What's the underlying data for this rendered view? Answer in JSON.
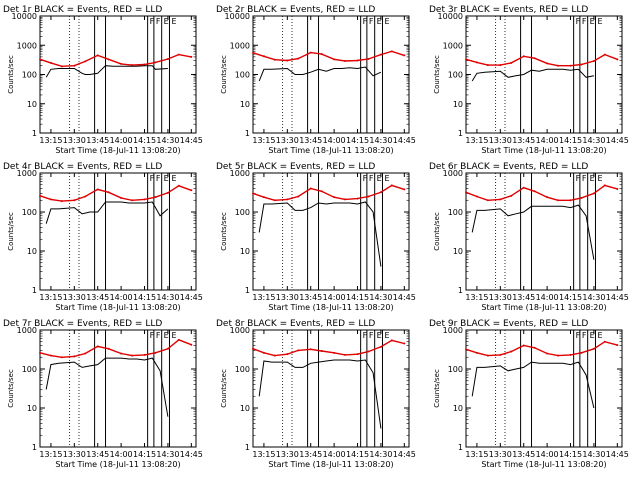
{
  "colors": {
    "events": "#000000",
    "lld": "#e00000",
    "background": "#ffffff",
    "axes": "#000000"
  },
  "labels": {
    "ylabel": "Counts/sec",
    "xlabel": "Start Time (18-Jul-11 13:08:20)"
  },
  "markers": [
    "F",
    "F",
    "E",
    "E"
  ],
  "chart_data": [
    {
      "type": "line",
      "title": "Det 1r  BLACK = Events, RED = LLD",
      "xlabel": "Start Time (18-Jul-11 13:08:20)",
      "ylabel": "Counts/sec",
      "y_scale": "log",
      "ylim": [
        1,
        10000
      ],
      "xlim": [
        "13:08",
        "14:48"
      ],
      "x_ticks": [
        "13:15",
        "13:30",
        "13:45",
        "14:00",
        "14:15",
        "14:30",
        "14:45"
      ],
      "y_ticks": [
        "1",
        "10",
        "100",
        "1000",
        "10000"
      ],
      "series": [
        {
          "name": "LLD",
          "color": "#e00000",
          "x": [
            "13:08",
            "13:15",
            "13:22",
            "13:30",
            "13:37",
            "13:45",
            "13:52",
            "14:00",
            "14:07",
            "14:15",
            "14:22",
            "14:30",
            "14:37",
            "14:45"
          ],
          "y": [
            330,
            250,
            190,
            200,
            280,
            450,
            330,
            230,
            210,
            220,
            260,
            340,
            480,
            400
          ]
        },
        {
          "name": "Events",
          "color": "#000000",
          "x": [
            "13:12",
            "13:15",
            "13:20",
            "13:30",
            "13:35",
            "13:37",
            "13:40",
            "13:45",
            "13:50",
            "13:55",
            "14:00",
            "14:05",
            "14:10",
            "14:15",
            "14:20",
            "14:22",
            "14:30"
          ],
          "y": [
            80,
            150,
            160,
            160,
            110,
            100,
            100,
            110,
            200,
            190,
            190,
            190,
            190,
            200,
            200,
            150,
            160
          ]
        }
      ]
    },
    {
      "type": "line",
      "title": "Det 2r  BLACK = Events, RED = LLD",
      "xlabel": "Start Time (18-Jul-11 13:08:20)",
      "ylabel": "Counts/sec",
      "y_scale": "log",
      "ylim": [
        1,
        10000
      ],
      "xlim": [
        "13:08",
        "14:48"
      ],
      "x_ticks": [
        "13:15",
        "13:30",
        "13:45",
        "14:00",
        "14:15",
        "14:30",
        "14:45"
      ],
      "y_ticks": [
        "1",
        "10",
        "100",
        "1000",
        "10000"
      ],
      "series": [
        {
          "name": "LLD",
          "color": "#e00000",
          "x": [
            "13:08",
            "13:15",
            "13:22",
            "13:30",
            "13:37",
            "13:45",
            "13:52",
            "14:00",
            "14:07",
            "14:15",
            "14:22",
            "14:30",
            "14:37",
            "14:45"
          ],
          "y": [
            550,
            420,
            320,
            300,
            350,
            560,
            500,
            330,
            290,
            300,
            340,
            480,
            620,
            450
          ]
        },
        {
          "name": "Events",
          "color": "#000000",
          "x": [
            "13:12",
            "13:15",
            "13:20",
            "13:30",
            "13:35",
            "13:40",
            "13:45",
            "13:50",
            "13:55",
            "14:00",
            "14:05",
            "14:10",
            "14:15",
            "14:20",
            "14:25",
            "14:30"
          ],
          "y": [
            60,
            150,
            150,
            160,
            100,
            100,
            120,
            150,
            130,
            160,
            160,
            170,
            160,
            180,
            90,
            120
          ]
        }
      ]
    },
    {
      "type": "line",
      "title": "Det 3r  BLACK = Events, RED = LLD",
      "xlabel": "Start Time (18-Jul-11 13:08:20)",
      "ylabel": "Counts/sec",
      "y_scale": "log",
      "ylim": [
        1,
        10000
      ],
      "xlim": [
        "13:08",
        "14:48"
      ],
      "x_ticks": [
        "13:15",
        "13:30",
        "13:45",
        "14:00",
        "14:15",
        "14:30",
        "14:45"
      ],
      "y_ticks": [
        "1",
        "10",
        "100",
        "1000",
        "10000"
      ],
      "series": [
        {
          "name": "LLD",
          "color": "#e00000",
          "x": [
            "13:08",
            "13:15",
            "13:22",
            "13:30",
            "13:37",
            "13:45",
            "13:52",
            "14:00",
            "14:07",
            "14:15",
            "14:22",
            "14:30",
            "14:37",
            "14:45"
          ],
          "y": [
            330,
            260,
            210,
            210,
            250,
            420,
            360,
            240,
            200,
            200,
            220,
            290,
            480,
            330
          ]
        },
        {
          "name": "Events",
          "color": "#000000",
          "x": [
            "13:12",
            "13:15",
            "13:20",
            "13:30",
            "13:35",
            "13:40",
            "13:45",
            "13:50",
            "13:55",
            "14:00",
            "14:05",
            "14:10",
            "14:15",
            "14:20",
            "14:25",
            "14:30"
          ],
          "y": [
            60,
            110,
            120,
            130,
            80,
            90,
            100,
            140,
            130,
            150,
            150,
            150,
            140,
            150,
            80,
            90
          ]
        }
      ]
    },
    {
      "type": "line",
      "title": "Det 4r  BLACK = Events, RED = LLD",
      "xlabel": "Start Time (18-Jul-11 13:08:20)",
      "ylabel": "Counts/sec",
      "y_scale": "log",
      "ylim": [
        1,
        1000
      ],
      "xlim": [
        "13:08",
        "14:48"
      ],
      "x_ticks": [
        "13:15",
        "13:30",
        "13:45",
        "14:00",
        "14:15",
        "14:30",
        "14:45"
      ],
      "y_ticks": [
        "1",
        "10",
        "100",
        "1000"
      ],
      "series": [
        {
          "name": "LLD",
          "color": "#e00000",
          "x": [
            "13:08",
            "13:15",
            "13:22",
            "13:30",
            "13:37",
            "13:45",
            "13:52",
            "14:00",
            "14:07",
            "14:15",
            "14:22",
            "14:30",
            "14:37",
            "14:45"
          ],
          "y": [
            260,
            210,
            190,
            200,
            250,
            380,
            320,
            230,
            200,
            210,
            240,
            310,
            470,
            360
          ]
        },
        {
          "name": "Events",
          "color": "#000000",
          "x": [
            "13:12",
            "13:15",
            "13:20",
            "13:30",
            "13:35",
            "13:40",
            "13:45",
            "13:50",
            "13:55",
            "14:00",
            "14:05",
            "14:10",
            "14:15",
            "14:20",
            "14:25",
            "14:30"
          ],
          "y": [
            50,
            120,
            120,
            130,
            90,
            100,
            100,
            180,
            180,
            180,
            170,
            170,
            170,
            180,
            80,
            120
          ]
        }
      ]
    },
    {
      "type": "line",
      "title": "Det 5r  BLACK = Events, RED = LLD",
      "xlabel": "Start Time (18-Jul-11 13:08:20)",
      "ylabel": "Counts/sec",
      "y_scale": "log",
      "ylim": [
        1,
        1000
      ],
      "xlim": [
        "13:08",
        "14:48"
      ],
      "x_ticks": [
        "13:15",
        "13:30",
        "13:45",
        "14:00",
        "14:15",
        "14:30",
        "14:45"
      ],
      "y_ticks": [
        "1",
        "10",
        "100",
        "1000"
      ],
      "series": [
        {
          "name": "LLD",
          "color": "#e00000",
          "x": [
            "13:08",
            "13:15",
            "13:22",
            "13:30",
            "13:37",
            "13:45",
            "13:52",
            "14:00",
            "14:07",
            "14:15",
            "14:22",
            "14:30",
            "14:37",
            "14:45"
          ],
          "y": [
            300,
            240,
            200,
            210,
            250,
            400,
            340,
            240,
            210,
            220,
            250,
            320,
            480,
            380
          ]
        },
        {
          "name": "Events",
          "color": "#000000",
          "x": [
            "13:12",
            "13:15",
            "13:20",
            "13:30",
            "13:35",
            "13:40",
            "13:45",
            "13:50",
            "13:55",
            "14:00",
            "14:05",
            "14:10",
            "14:15",
            "14:20",
            "14:25",
            "14:30"
          ],
          "y": [
            30,
            160,
            160,
            170,
            110,
            110,
            130,
            170,
            160,
            170,
            170,
            170,
            160,
            180,
            100,
            4
          ]
        }
      ]
    },
    {
      "type": "line",
      "title": "Det 6r  BLACK = Events, RED = LLD",
      "xlabel": "Start Time (18-Jul-11 13:08:20)",
      "ylabel": "Counts/sec",
      "y_scale": "log",
      "ylim": [
        1,
        1000
      ],
      "xlim": [
        "13:08",
        "14:48"
      ],
      "x_ticks": [
        "13:15",
        "13:30",
        "13:45",
        "14:00",
        "14:15",
        "14:30",
        "14:45"
      ],
      "y_ticks": [
        "1",
        "10",
        "100",
        "1000"
      ],
      "series": [
        {
          "name": "LLD",
          "color": "#e00000",
          "x": [
            "13:08",
            "13:15",
            "13:22",
            "13:30",
            "13:37",
            "13:45",
            "13:52",
            "14:00",
            "14:07",
            "14:15",
            "14:22",
            "14:30",
            "14:37",
            "14:45"
          ],
          "y": [
            320,
            250,
            200,
            210,
            260,
            420,
            340,
            240,
            200,
            200,
            230,
            300,
            480,
            390
          ]
        },
        {
          "name": "Events",
          "color": "#000000",
          "x": [
            "13:12",
            "13:15",
            "13:20",
            "13:30",
            "13:35",
            "13:40",
            "13:45",
            "13:50",
            "13:55",
            "14:00",
            "14:05",
            "14:10",
            "14:15",
            "14:20",
            "14:25",
            "14:30"
          ],
          "y": [
            30,
            110,
            110,
            120,
            80,
            90,
            100,
            140,
            140,
            140,
            140,
            140,
            130,
            150,
            80,
            6
          ]
        }
      ]
    },
    {
      "type": "line",
      "title": "Det 7r  BLACK = Events, RED = LLD",
      "xlabel": "Start Time (18-Jul-11 13:08:20)",
      "ylabel": "Counts/sec",
      "y_scale": "log",
      "ylim": [
        1,
        1000
      ],
      "xlim": [
        "13:08",
        "14:48"
      ],
      "x_ticks": [
        "13:15",
        "13:30",
        "13:45",
        "14:00",
        "14:15",
        "14:30",
        "14:45"
      ],
      "y_ticks": [
        "1",
        "10",
        "100",
        "1000"
      ],
      "series": [
        {
          "name": "LLD",
          "color": "#e00000",
          "x": [
            "13:08",
            "13:15",
            "13:22",
            "13:30",
            "13:37",
            "13:45",
            "13:52",
            "14:00",
            "14:07",
            "14:15",
            "14:22",
            "14:30",
            "14:37",
            "14:45"
          ],
          "y": [
            260,
            220,
            200,
            210,
            250,
            380,
            330,
            250,
            220,
            230,
            260,
            330,
            560,
            420
          ]
        },
        {
          "name": "Events",
          "color": "#000000",
          "x": [
            "13:12",
            "13:15",
            "13:20",
            "13:30",
            "13:35",
            "13:40",
            "13:45",
            "13:50",
            "13:55",
            "14:00",
            "14:05",
            "14:10",
            "14:15",
            "14:20",
            "14:25",
            "14:30"
          ],
          "y": [
            30,
            130,
            140,
            150,
            110,
            120,
            130,
            190,
            190,
            190,
            180,
            180,
            170,
            190,
            90,
            6
          ]
        }
      ]
    },
    {
      "type": "line",
      "title": "Det 8r  BLACK = Events, RED = LLD",
      "xlabel": "Start Time (18-Jul-11 13:08:20)",
      "ylabel": "Counts/sec",
      "y_scale": "log",
      "ylim": [
        1,
        1000
      ],
      "xlim": [
        "13:08",
        "14:48"
      ],
      "x_ticks": [
        "13:15",
        "13:30",
        "13:45",
        "14:00",
        "14:15",
        "14:30",
        "14:45"
      ],
      "y_ticks": [
        "1",
        "10",
        "100",
        "1000"
      ],
      "series": [
        {
          "name": "LLD",
          "color": "#e00000",
          "x": [
            "13:08",
            "13:15",
            "13:22",
            "13:30",
            "13:37",
            "13:45",
            "13:52",
            "14:00",
            "14:07",
            "14:15",
            "14:22",
            "14:30",
            "14:37",
            "14:45"
          ],
          "y": [
            330,
            260,
            220,
            240,
            300,
            320,
            290,
            260,
            230,
            240,
            280,
            370,
            540,
            450
          ]
        },
        {
          "name": "Events",
          "color": "#000000",
          "x": [
            "13:12",
            "13:15",
            "13:20",
            "13:30",
            "13:35",
            "13:40",
            "13:45",
            "13:50",
            "13:55",
            "14:00",
            "14:05",
            "14:10",
            "14:15",
            "14:20",
            "14:25",
            "14:30"
          ],
          "y": [
            20,
            160,
            150,
            150,
            110,
            110,
            140,
            150,
            160,
            170,
            170,
            170,
            160,
            170,
            80,
            3
          ]
        }
      ]
    },
    {
      "type": "line",
      "title": "Det 9r  BLACK = Events, RED = LLD",
      "xlabel": "Start Time (18-Jul-11 13:08:20)",
      "ylabel": "Counts/sec",
      "y_scale": "log",
      "ylim": [
        1,
        1000
      ],
      "xlim": [
        "13:08",
        "14:48"
      ],
      "x_ticks": [
        "13:15",
        "13:30",
        "13:45",
        "14:00",
        "14:15",
        "14:30",
        "14:45"
      ],
      "y_ticks": [
        "1",
        "10",
        "100",
        "1000"
      ],
      "series": [
        {
          "name": "LLD",
          "color": "#e00000",
          "x": [
            "13:08",
            "13:15",
            "13:22",
            "13:30",
            "13:37",
            "13:45",
            "13:52",
            "14:00",
            "14:07",
            "14:15",
            "14:22",
            "14:30",
            "14:37",
            "14:45"
          ],
          "y": [
            320,
            260,
            220,
            230,
            280,
            400,
            350,
            250,
            220,
            230,
            260,
            330,
            500,
            410
          ]
        },
        {
          "name": "Events",
          "color": "#000000",
          "x": [
            "13:12",
            "13:15",
            "13:20",
            "13:30",
            "13:35",
            "13:40",
            "13:45",
            "13:50",
            "13:55",
            "14:00",
            "14:05",
            "14:10",
            "14:15",
            "14:20",
            "14:25",
            "14:30"
          ],
          "y": [
            20,
            110,
            110,
            120,
            90,
            100,
            110,
            150,
            140,
            140,
            140,
            140,
            130,
            150,
            70,
            10
          ]
        }
      ]
    }
  ]
}
